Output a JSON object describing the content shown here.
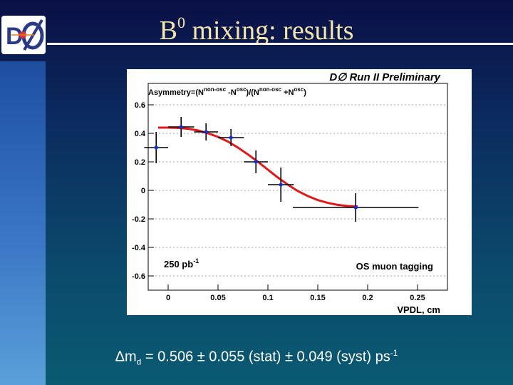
{
  "slide": {
    "title_main": "B",
    "title_sup": "0",
    "title_rest": " mixing: results"
  },
  "result": {
    "delta": "Δm",
    "sub": "d",
    "text": " = 0.506 ± 0.055 (stat) ± 0.049 (syst) ps",
    "sup": "-1"
  },
  "chart_data": {
    "type": "scatter",
    "title": "Asymmetry=(N^non-osc -N^osc)/(N^non-osc +N^osc)",
    "title_parts": [
      "Asymmetry=(N",
      "non-osc",
      " -N",
      "osc",
      ")/(N",
      "non-osc",
      " +N",
      "osc",
      ")"
    ],
    "banner": "D∅ Run II Preliminary",
    "xlabel": "VPDL, cm",
    "ylabel": "",
    "xlim": [
      -0.02,
      0.28
    ],
    "ylim": [
      -0.7,
      0.75
    ],
    "xticks": [
      0,
      0.05,
      0.1,
      0.15,
      0.2,
      0.25
    ],
    "xtick_labels": [
      "0",
      "0.05",
      "0.1",
      "0.15",
      "0.2",
      "0.25"
    ],
    "yticks": [
      0.6,
      0.4,
      0.2,
      0,
      -0.2,
      -0.4,
      -0.6
    ],
    "ytick_labels": [
      "0.6",
      "0.4",
      "0.2",
      "0",
      "-0.2",
      "-0.4",
      "-0.6"
    ],
    "grid_y": true,
    "points": [
      {
        "x": -0.012,
        "y": 0.3,
        "xerr": 0.012,
        "yerr": 0.11
      },
      {
        "x": 0.013,
        "y": 0.445,
        "xerr": 0.013,
        "yerr": 0.07
      },
      {
        "x": 0.038,
        "y": 0.41,
        "xerr": 0.012,
        "yerr": 0.06
      },
      {
        "x": 0.063,
        "y": 0.37,
        "xerr": 0.013,
        "yerr": 0.06
      },
      {
        "x": 0.088,
        "y": 0.2,
        "xerr": 0.012,
        "yerr": 0.08
      },
      {
        "x": 0.113,
        "y": 0.04,
        "xerr": 0.013,
        "yerr": 0.12
      },
      {
        "x": 0.188,
        "y": -0.12,
        "xerr": 0.063,
        "yerr": 0.1
      }
    ],
    "fit_curve": [
      [
        -0.01,
        0.44
      ],
      [
        0.0,
        0.44
      ],
      [
        0.01,
        0.438
      ],
      [
        0.02,
        0.432
      ],
      [
        0.03,
        0.42
      ],
      [
        0.04,
        0.4
      ],
      [
        0.05,
        0.375
      ],
      [
        0.06,
        0.342
      ],
      [
        0.07,
        0.3
      ],
      [
        0.08,
        0.252
      ],
      [
        0.09,
        0.2
      ],
      [
        0.1,
        0.145
      ],
      [
        0.11,
        0.09
      ],
      [
        0.12,
        0.04
      ],
      [
        0.13,
        -0.005
      ],
      [
        0.14,
        -0.04
      ],
      [
        0.15,
        -0.068
      ],
      [
        0.16,
        -0.088
      ],
      [
        0.17,
        -0.102
      ],
      [
        0.18,
        -0.11
      ],
      [
        0.19,
        -0.113
      ]
    ],
    "annotation_left": "250 pb",
    "annotation_left_sup": "-1",
    "annotation_right": "OS muon tagging",
    "colors": {
      "fit": "#e01818",
      "point": "#1030e0",
      "err": "#000000",
      "grid": "#808080"
    }
  }
}
